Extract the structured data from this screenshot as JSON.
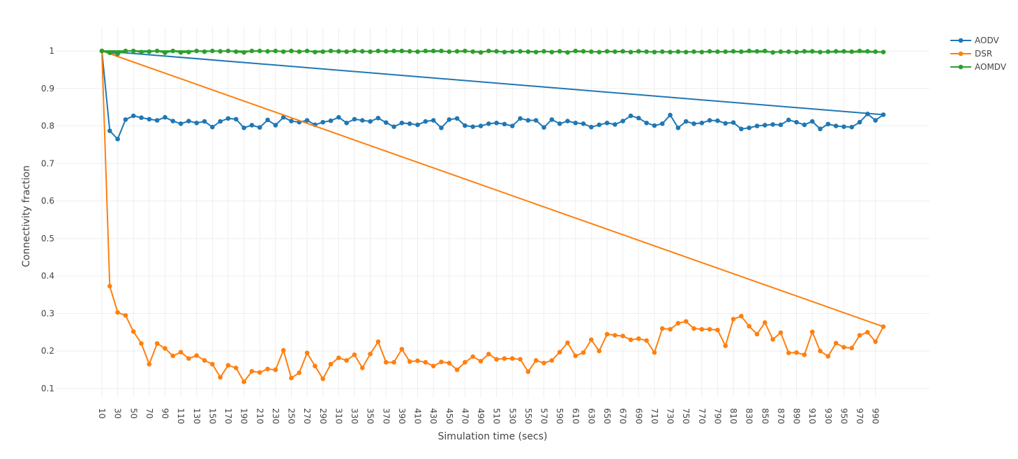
{
  "chart_data": {
    "type": "line",
    "xlabel": "Simulation time (secs)",
    "ylabel": "Connectivity fraction",
    "xlim": [
      0,
      1010
    ],
    "ylim": [
      0.07,
      1.06
    ],
    "xticks": [
      10,
      30,
      50,
      70,
      90,
      110,
      130,
      150,
      170,
      190,
      210,
      230,
      250,
      270,
      290,
      310,
      330,
      350,
      370,
      390,
      410,
      430,
      450,
      470,
      490,
      510,
      530,
      550,
      570,
      590,
      610,
      630,
      650,
      670,
      690,
      710,
      730,
      750,
      770,
      790,
      810,
      830,
      850,
      870,
      890,
      910,
      930,
      950,
      970,
      990
    ],
    "yticks": [
      0.1,
      0.2,
      0.3,
      0.4,
      0.5,
      0.6,
      0.7,
      0.8,
      0.9,
      1
    ],
    "grid": true,
    "legend": "top-right",
    "x": [
      10,
      20,
      30,
      40,
      50,
      60,
      70,
      80,
      90,
      100,
      110,
      120,
      130,
      140,
      150,
      160,
      170,
      180,
      190,
      200,
      210,
      220,
      230,
      240,
      250,
      260,
      270,
      280,
      290,
      300,
      310,
      320,
      330,
      340,
      350,
      360,
      370,
      380,
      390,
      400,
      410,
      420,
      430,
      440,
      450,
      460,
      470,
      480,
      490,
      500,
      510,
      520,
      530,
      540,
      550,
      560,
      570,
      580,
      590,
      600,
      610,
      620,
      630,
      640,
      650,
      660,
      670,
      680,
      690,
      700,
      710,
      720,
      730,
      740,
      750,
      760,
      770,
      780,
      790,
      800,
      810,
      820,
      830,
      840,
      850,
      860,
      870,
      880,
      890,
      900,
      910,
      920,
      930,
      940,
      950,
      960,
      970,
      980,
      990,
      1000
    ],
    "series": [
      {
        "name": "AODV",
        "color": "#1f77b4",
        "values": [
          1,
          0.787,
          0.765,
          0.817,
          0.827,
          0.822,
          0.818,
          0.815,
          0.823,
          0.813,
          0.806,
          0.813,
          0.808,
          0.812,
          0.797,
          0.812,
          0.82,
          0.818,
          0.795,
          0.802,
          0.796,
          0.816,
          0.802,
          0.823,
          0.813,
          0.81,
          0.815,
          0.803,
          0.81,
          0.814,
          0.823,
          0.808,
          0.818,
          0.815,
          0.812,
          0.821,
          0.809,
          0.798,
          0.808,
          0.806,
          0.803,
          0.812,
          0.815,
          0.795,
          0.817,
          0.82,
          0.801,
          0.798,
          0.8,
          0.806,
          0.808,
          0.805,
          0.8,
          0.82,
          0.815,
          0.815,
          0.796,
          0.817,
          0.806,
          0.813,
          0.808,
          0.806,
          0.797,
          0.803,
          0.808,
          0.804,
          0.813,
          0.827,
          0.821,
          0.808,
          0.801,
          0.806,
          0.829,
          0.795,
          0.812,
          0.806,
          0.808,
          0.815,
          0.814,
          0.807,
          0.809,
          0.792,
          0.795,
          0.8,
          0.802,
          0.804,
          0.803,
          0.816,
          0.81,
          0.803,
          0.812,
          0.792,
          0.805,
          0.8,
          0.798,
          0.797,
          0.81,
          0.832,
          0.815,
          0.83
        ]
      },
      {
        "name": "DSR",
        "color": "#ff7f0e",
        "values": [
          1,
          0.373,
          0.303,
          0.295,
          0.252,
          0.22,
          0.165,
          0.22,
          0.207,
          0.187,
          0.197,
          0.18,
          0.188,
          0.175,
          0.165,
          0.13,
          0.162,
          0.155,
          0.118,
          0.146,
          0.143,
          0.152,
          0.15,
          0.202,
          0.128,
          0.142,
          0.195,
          0.16,
          0.126,
          0.165,
          0.182,
          0.175,
          0.19,
          0.155,
          0.192,
          0.225,
          0.17,
          0.17,
          0.205,
          0.172,
          0.174,
          0.17,
          0.16,
          0.171,
          0.168,
          0.15,
          0.17,
          0.185,
          0.173,
          0.192,
          0.178,
          0.18,
          0.18,
          0.178,
          0.145,
          0.175,
          0.168,
          0.175,
          0.197,
          0.222,
          0.187,
          0.196,
          0.23,
          0.2,
          0.245,
          0.242,
          0.24,
          0.23,
          0.233,
          0.228,
          0.196,
          0.26,
          0.258,
          0.274,
          0.279,
          0.26,
          0.258,
          0.258,
          0.256,
          0.214,
          0.285,
          0.293,
          0.266,
          0.245,
          0.276,
          0.231,
          0.249,
          0.195,
          0.196,
          0.19,
          0.251,
          0.2,
          0.186,
          0.221,
          0.21,
          0.208,
          0.242,
          0.25,
          0.225,
          0.265
        ]
      },
      {
        "name": "AOMDV",
        "color": "#2ca02c",
        "values": [
          1,
          0.995,
          0.992,
          1,
          1,
          0.997,
          0.998,
          1,
          0.995,
          1,
          0.996,
          0.997,
          1,
          0.998,
          1,
          0.999,
          1,
          0.998,
          0.996,
          1,
          1,
          0.999,
          1,
          0.998,
          1,
          0.998,
          1,
          0.997,
          0.998,
          1,
          0.999,
          0.998,
          1,
          0.999,
          0.998,
          1,
          0.999,
          1,
          1,
          0.999,
          0.998,
          1,
          1,
          1,
          0.998,
          0.999,
          1,
          0.998,
          0.996,
          1,
          0.999,
          0.997,
          0.998,
          0.999,
          0.998,
          0.997,
          0.999,
          0.997,
          0.999,
          0.996,
          1,
          0.999,
          0.998,
          0.997,
          0.999,
          0.998,
          0.999,
          0.997,
          0.999,
          0.998,
          0.997,
          0.998,
          0.997,
          0.998,
          0.997,
          0.998,
          0.997,
          0.999,
          0.998,
          0.998,
          0.999,
          0.998,
          1,
          0.999,
          1,
          0.996,
          0.998,
          0.998,
          0.997,
          0.999,
          0.999,
          0.997,
          0.998,
          0.999,
          0.999,
          0.998,
          1,
          0.999,
          0.998,
          0.997
        ]
      }
    ]
  }
}
